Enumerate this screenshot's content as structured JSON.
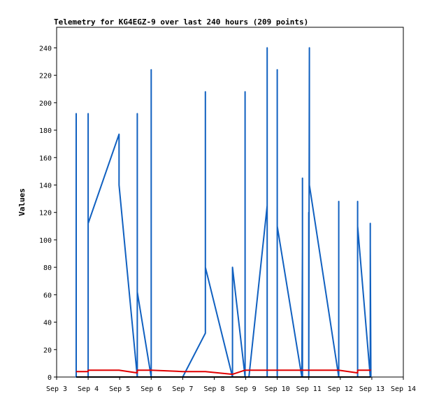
{
  "chart_data": {
    "type": "line",
    "title": "Telemetry for KG4EGZ-9 over last 240 hours (209 points)",
    "xlabel": "",
    "ylabel": "Values",
    "x_tick_labels": [
      "Sep 3",
      "Sep 4",
      "Sep 5",
      "Sep 6",
      "Sep 7",
      "Sep 8",
      "Sep 9",
      "Sep 10",
      "Sep 11",
      "Sep 12",
      "Sep 13",
      "Sep 14"
    ],
    "xlim": [
      0,
      11
    ],
    "y_ticks": [
      0,
      20,
      40,
      60,
      80,
      100,
      120,
      140,
      160,
      180,
      200,
      220,
      240
    ],
    "ylim": [
      0,
      255
    ],
    "grid": false,
    "colors": {
      "blue": "#1060c0",
      "red": "#e00000",
      "black": "#000000"
    },
    "series": [
      {
        "color": "#1060c0",
        "points": [
          [
            0.62,
            0
          ],
          [
            0.62,
            192
          ],
          [
            0.62,
            0
          ],
          [
            1.0,
            0
          ],
          [
            1.0,
            192
          ],
          [
            1.0,
            112
          ],
          [
            1.98,
            177
          ],
          [
            1.98,
            140
          ],
          [
            2.56,
            0
          ],
          [
            2.56,
            192
          ],
          [
            2.56,
            62
          ],
          [
            3.0,
            0
          ],
          [
            3.0,
            224
          ],
          [
            3.0,
            0
          ],
          [
            4.0,
            0
          ],
          [
            4.72,
            32
          ],
          [
            4.72,
            104
          ],
          [
            4.72,
            208
          ],
          [
            4.72,
            80
          ],
          [
            5.58,
            0
          ],
          [
            5.58,
            80
          ],
          [
            5.98,
            0
          ],
          [
            5.98,
            208
          ],
          [
            5.98,
            0
          ],
          [
            6.1,
            0
          ],
          [
            6.68,
            125
          ],
          [
            6.68,
            240
          ],
          [
            6.68,
            0
          ],
          [
            7.0,
            0
          ],
          [
            7.0,
            224
          ],
          [
            7.0,
            110
          ],
          [
            7.78,
            0
          ],
          [
            7.8,
            96
          ],
          [
            7.8,
            145
          ],
          [
            7.8,
            0
          ],
          [
            8.0,
            0
          ],
          [
            8.0,
            120
          ],
          [
            8.0,
            0
          ],
          [
            8.02,
            240
          ],
          [
            8.02,
            140
          ],
          [
            8.95,
            0
          ],
          [
            8.95,
            128
          ],
          [
            8.95,
            0
          ],
          [
            9.55,
            0
          ],
          [
            9.55,
            128
          ],
          [
            9.55,
            110
          ],
          [
            9.95,
            0
          ],
          [
            9.95,
            112
          ],
          [
            9.95,
            96
          ],
          [
            9.97,
            0
          ]
        ]
      },
      {
        "color": "#e00000",
        "points": [
          [
            0.62,
            4
          ],
          [
            1.0,
            4
          ],
          [
            1.0,
            5
          ],
          [
            1.98,
            5
          ],
          [
            2.56,
            3
          ],
          [
            2.56,
            5
          ],
          [
            3.0,
            5
          ],
          [
            4.0,
            4
          ],
          [
            4.72,
            4
          ],
          [
            5.58,
            2
          ],
          [
            5.98,
            5
          ],
          [
            8.95,
            5
          ],
          [
            9.55,
            3
          ],
          [
            9.55,
            5
          ],
          [
            9.97,
            5
          ]
        ]
      },
      {
        "color": "#000000",
        "points": [
          [
            0.62,
            0
          ],
          [
            9.97,
            0
          ]
        ]
      }
    ]
  }
}
